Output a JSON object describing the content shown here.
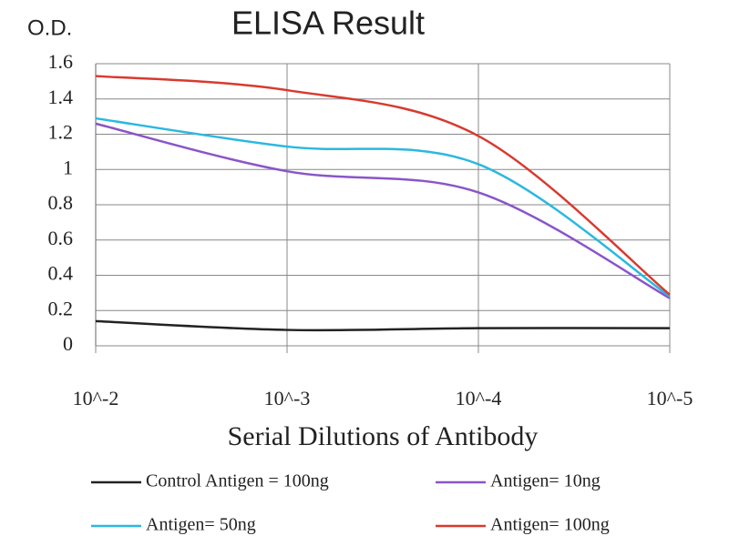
{
  "chart_data": {
    "type": "line",
    "title": "ELISA Result",
    "y_label": "O.D.",
    "x_label": "Serial Dilutions of Antibody",
    "categories": [
      "10^-2",
      "10^-3",
      "10^-4",
      "10^-5"
    ],
    "ylim": [
      0,
      1.6
    ],
    "yticks": [
      0,
      0.2,
      0.4,
      0.6,
      0.8,
      1,
      1.2,
      1.4,
      1.6
    ],
    "grid": true,
    "series": [
      {
        "name": "Control Antigen = 100ng",
        "color": "#222222",
        "values": [
          0.14,
          0.09,
          0.1,
          0.1
        ]
      },
      {
        "name": "Antigen= 10ng",
        "color": "#8a55c8",
        "values": [
          1.26,
          0.99,
          0.87,
          0.27
        ]
      },
      {
        "name": "Antigen= 50ng",
        "color": "#2bb8e0",
        "values": [
          1.29,
          1.13,
          1.03,
          0.28
        ]
      },
      {
        "name": "Antigen= 100ng",
        "color": "#d83a2e",
        "values": [
          1.53,
          1.45,
          1.19,
          0.29
        ]
      }
    ]
  }
}
